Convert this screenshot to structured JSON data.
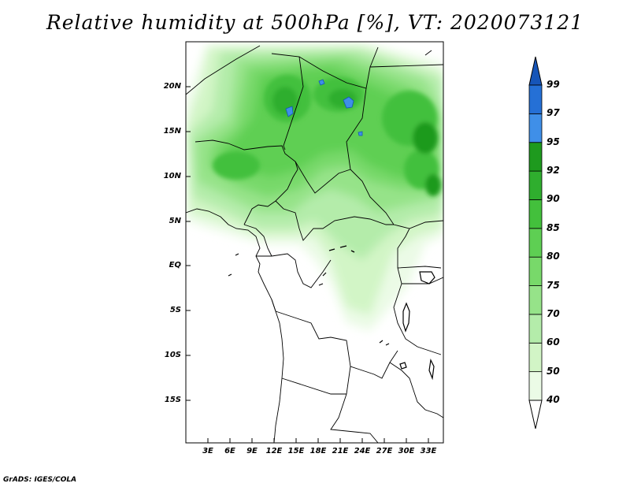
{
  "title": "Relative humidity at 500hPa [%], VT: 2020073121",
  "credit": "GrADS: IGES/COLA",
  "map": {
    "latitude_labels": [
      "20N",
      "15N",
      "10N",
      "5N",
      "EQ",
      "5S",
      "10S",
      "15S"
    ],
    "longitude_labels": [
      "3E",
      "6E",
      "9E",
      "12E",
      "15E",
      "18E",
      "21E",
      "24E",
      "27E",
      "30E",
      "33E"
    ]
  },
  "chart_data": {
    "type": "heatmap",
    "title": "Relative humidity at 500hPa [%], VT: 2020073121",
    "variable": "Relative humidity",
    "units": "%",
    "level": "500hPa",
    "valid_time": "2020073121",
    "lon_range": [
      0,
      35
    ],
    "lat_range": [
      -20,
      25
    ],
    "colorbar": {
      "levels": [
        40,
        50,
        60,
        70,
        75,
        80,
        85,
        90,
        92,
        95,
        97,
        99
      ],
      "colors": [
        "#ebfbe6",
        "#d2f5c6",
        "#b4ecaa",
        "#96e389",
        "#78d96a",
        "#5ecf53",
        "#43c03c",
        "#2fae2e",
        "#1e9a1e",
        "#3f8fe8",
        "#2570d6",
        "#1655b8"
      ]
    }
  }
}
